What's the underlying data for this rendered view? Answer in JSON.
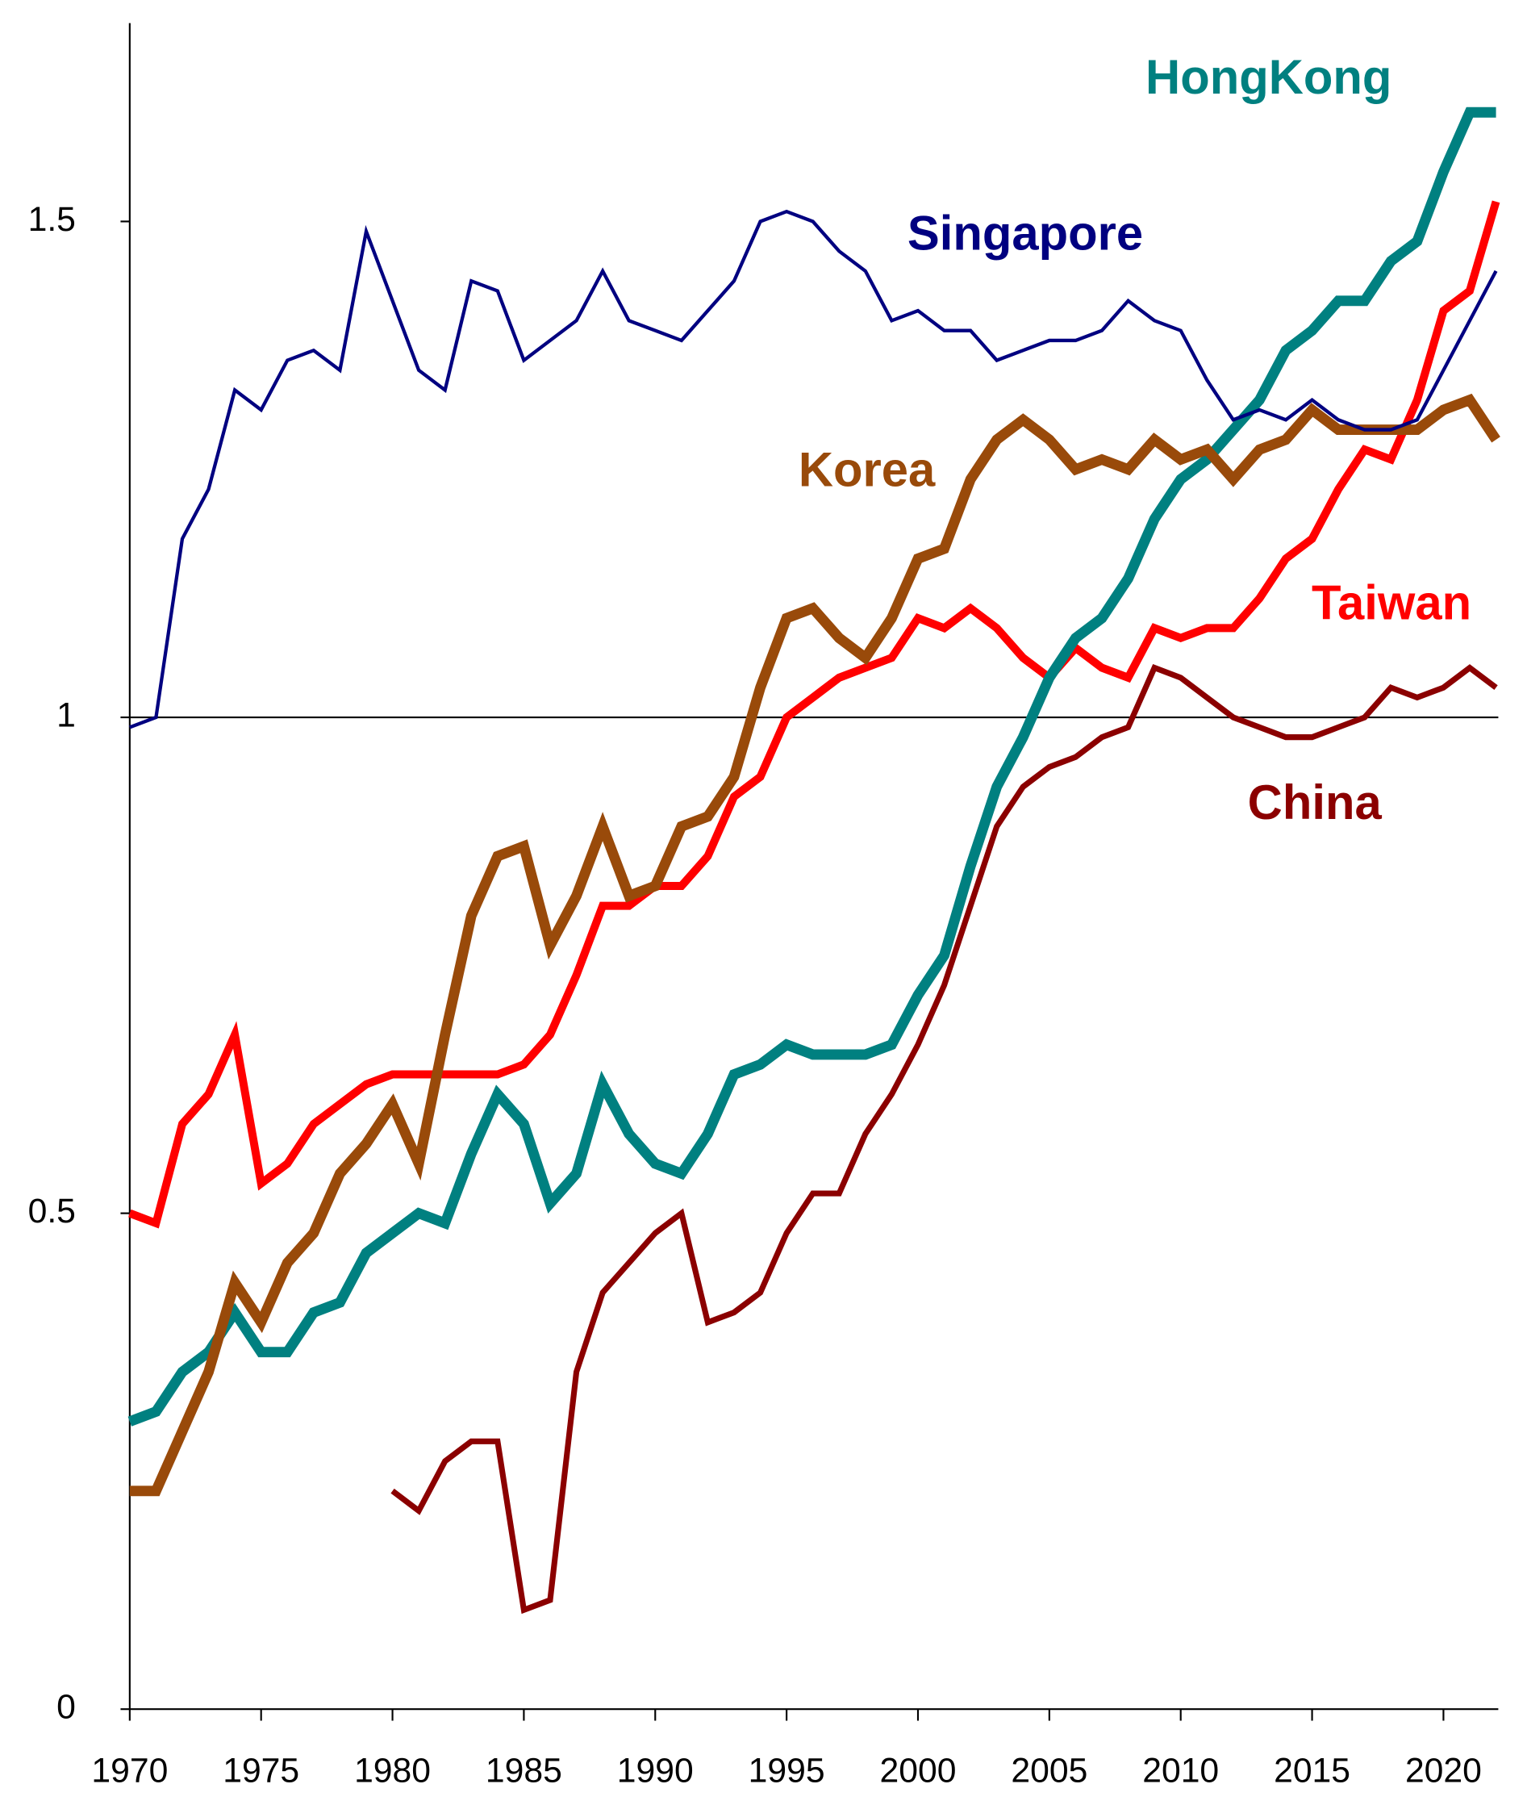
{
  "chart_data": {
    "type": "line",
    "x": [
      1970,
      1971,
      1972,
      1973,
      1974,
      1975,
      1976,
      1977,
      1978,
      1979,
      1980,
      1981,
      1982,
      1983,
      1984,
      1985,
      1986,
      1987,
      1988,
      1989,
      1990,
      1991,
      1992,
      1993,
      1994,
      1995,
      1996,
      1997,
      1998,
      1999,
      2000,
      2001,
      2002,
      2003,
      2004,
      2005,
      2006,
      2007,
      2008,
      2009,
      2010,
      2011,
      2012,
      2013,
      2014,
      2015,
      2016,
      2017,
      2018,
      2019,
      2020,
      2021,
      2022
    ],
    "xlim": [
      1970,
      2022
    ],
    "xticks": [
      1970,
      1975,
      1980,
      1985,
      1990,
      1995,
      2000,
      2005,
      2010,
      2015,
      2020
    ],
    "ylim": [
      0,
      1.7
    ],
    "yticks": [
      0,
      0.5,
      1,
      1.5
    ],
    "hline": 1,
    "series": [
      {
        "name": "Singapore",
        "color": "#000080",
        "values": [
          0.99,
          1.0,
          1.18,
          1.23,
          1.33,
          1.31,
          1.36,
          1.37,
          1.35,
          1.49,
          1.42,
          1.35,
          1.33,
          1.44,
          1.43,
          1.36,
          1.38,
          1.4,
          1.45,
          1.4,
          1.39,
          1.38,
          1.41,
          1.44,
          1.5,
          1.51,
          1.5,
          1.47,
          1.45,
          1.4,
          1.41,
          1.39,
          1.39,
          1.36,
          1.37,
          1.38,
          1.38,
          1.39,
          1.42,
          1.4,
          1.39,
          1.34,
          1.3,
          1.31,
          1.3,
          1.32,
          1.3,
          1.29,
          1.29,
          1.3,
          1.35,
          1.4,
          1.45
        ]
      },
      {
        "name": "HongKong",
        "color": "#008080",
        "values": [
          0.29,
          0.3,
          0.34,
          0.36,
          0.4,
          0.36,
          0.36,
          0.4,
          0.41,
          0.46,
          0.48,
          0.5,
          0.49,
          0.56,
          0.62,
          0.59,
          0.51,
          0.54,
          0.63,
          0.58,
          0.55,
          0.54,
          0.58,
          0.64,
          0.65,
          0.67,
          0.66,
          0.66,
          0.66,
          0.67,
          0.72,
          0.76,
          0.85,
          0.93,
          0.98,
          1.04,
          1.08,
          1.1,
          1.14,
          1.2,
          1.24,
          1.26,
          1.29,
          1.32,
          1.37,
          1.39,
          1.42,
          1.42,
          1.46,
          1.48,
          1.55,
          1.61,
          1.61
        ]
      },
      {
        "name": "Taiwan",
        "color": "#ff0000",
        "values": [
          0.5,
          0.49,
          0.59,
          0.62,
          0.68,
          0.53,
          0.55,
          0.59,
          0.61,
          0.63,
          0.64,
          0.64,
          0.64,
          0.64,
          0.64,
          0.65,
          0.68,
          0.74,
          0.81,
          0.81,
          0.83,
          0.83,
          0.86,
          0.92,
          0.94,
          1.0,
          1.02,
          1.04,
          1.05,
          1.06,
          1.1,
          1.09,
          1.11,
          1.09,
          1.06,
          1.04,
          1.07,
          1.05,
          1.04,
          1.09,
          1.08,
          1.09,
          1.09,
          1.12,
          1.16,
          1.18,
          1.23,
          1.27,
          1.26,
          1.32,
          1.41,
          1.43,
          1.52
        ]
      },
      {
        "name": "Korea",
        "color": "#994a0a",
        "values": [
          0.22,
          0.22,
          0.28,
          0.34,
          0.43,
          0.39,
          0.45,
          0.48,
          0.54,
          0.57,
          0.61,
          0.55,
          0.68,
          0.8,
          0.86,
          0.87,
          0.77,
          0.82,
          0.89,
          0.82,
          0.83,
          0.89,
          0.9,
          0.94,
          1.03,
          1.1,
          1.11,
          1.08,
          1.06,
          1.1,
          1.16,
          1.17,
          1.24,
          1.28,
          1.3,
          1.28,
          1.25,
          1.26,
          1.25,
          1.28,
          1.26,
          1.27,
          1.24,
          1.27,
          1.28,
          1.31,
          1.29,
          1.29,
          1.29,
          1.29,
          1.31,
          1.32,
          1.28
        ]
      },
      {
        "name": "China",
        "color": "#8b0000",
        "values": [
          null,
          null,
          null,
          null,
          null,
          null,
          null,
          null,
          null,
          null,
          0.22,
          0.2,
          0.25,
          0.27,
          0.27,
          0.1,
          0.11,
          0.34,
          0.42,
          0.45,
          0.48,
          0.5,
          0.39,
          0.4,
          0.42,
          0.48,
          0.52,
          0.52,
          0.58,
          0.62,
          0.67,
          0.73,
          0.81,
          0.89,
          0.93,
          0.95,
          0.96,
          0.98,
          0.99,
          1.05,
          1.04,
          1.02,
          1.0,
          0.99,
          0.98,
          0.98,
          0.99,
          1.0,
          1.03,
          1.02,
          1.03,
          1.05,
          1.03
        ]
      }
    ]
  }
}
